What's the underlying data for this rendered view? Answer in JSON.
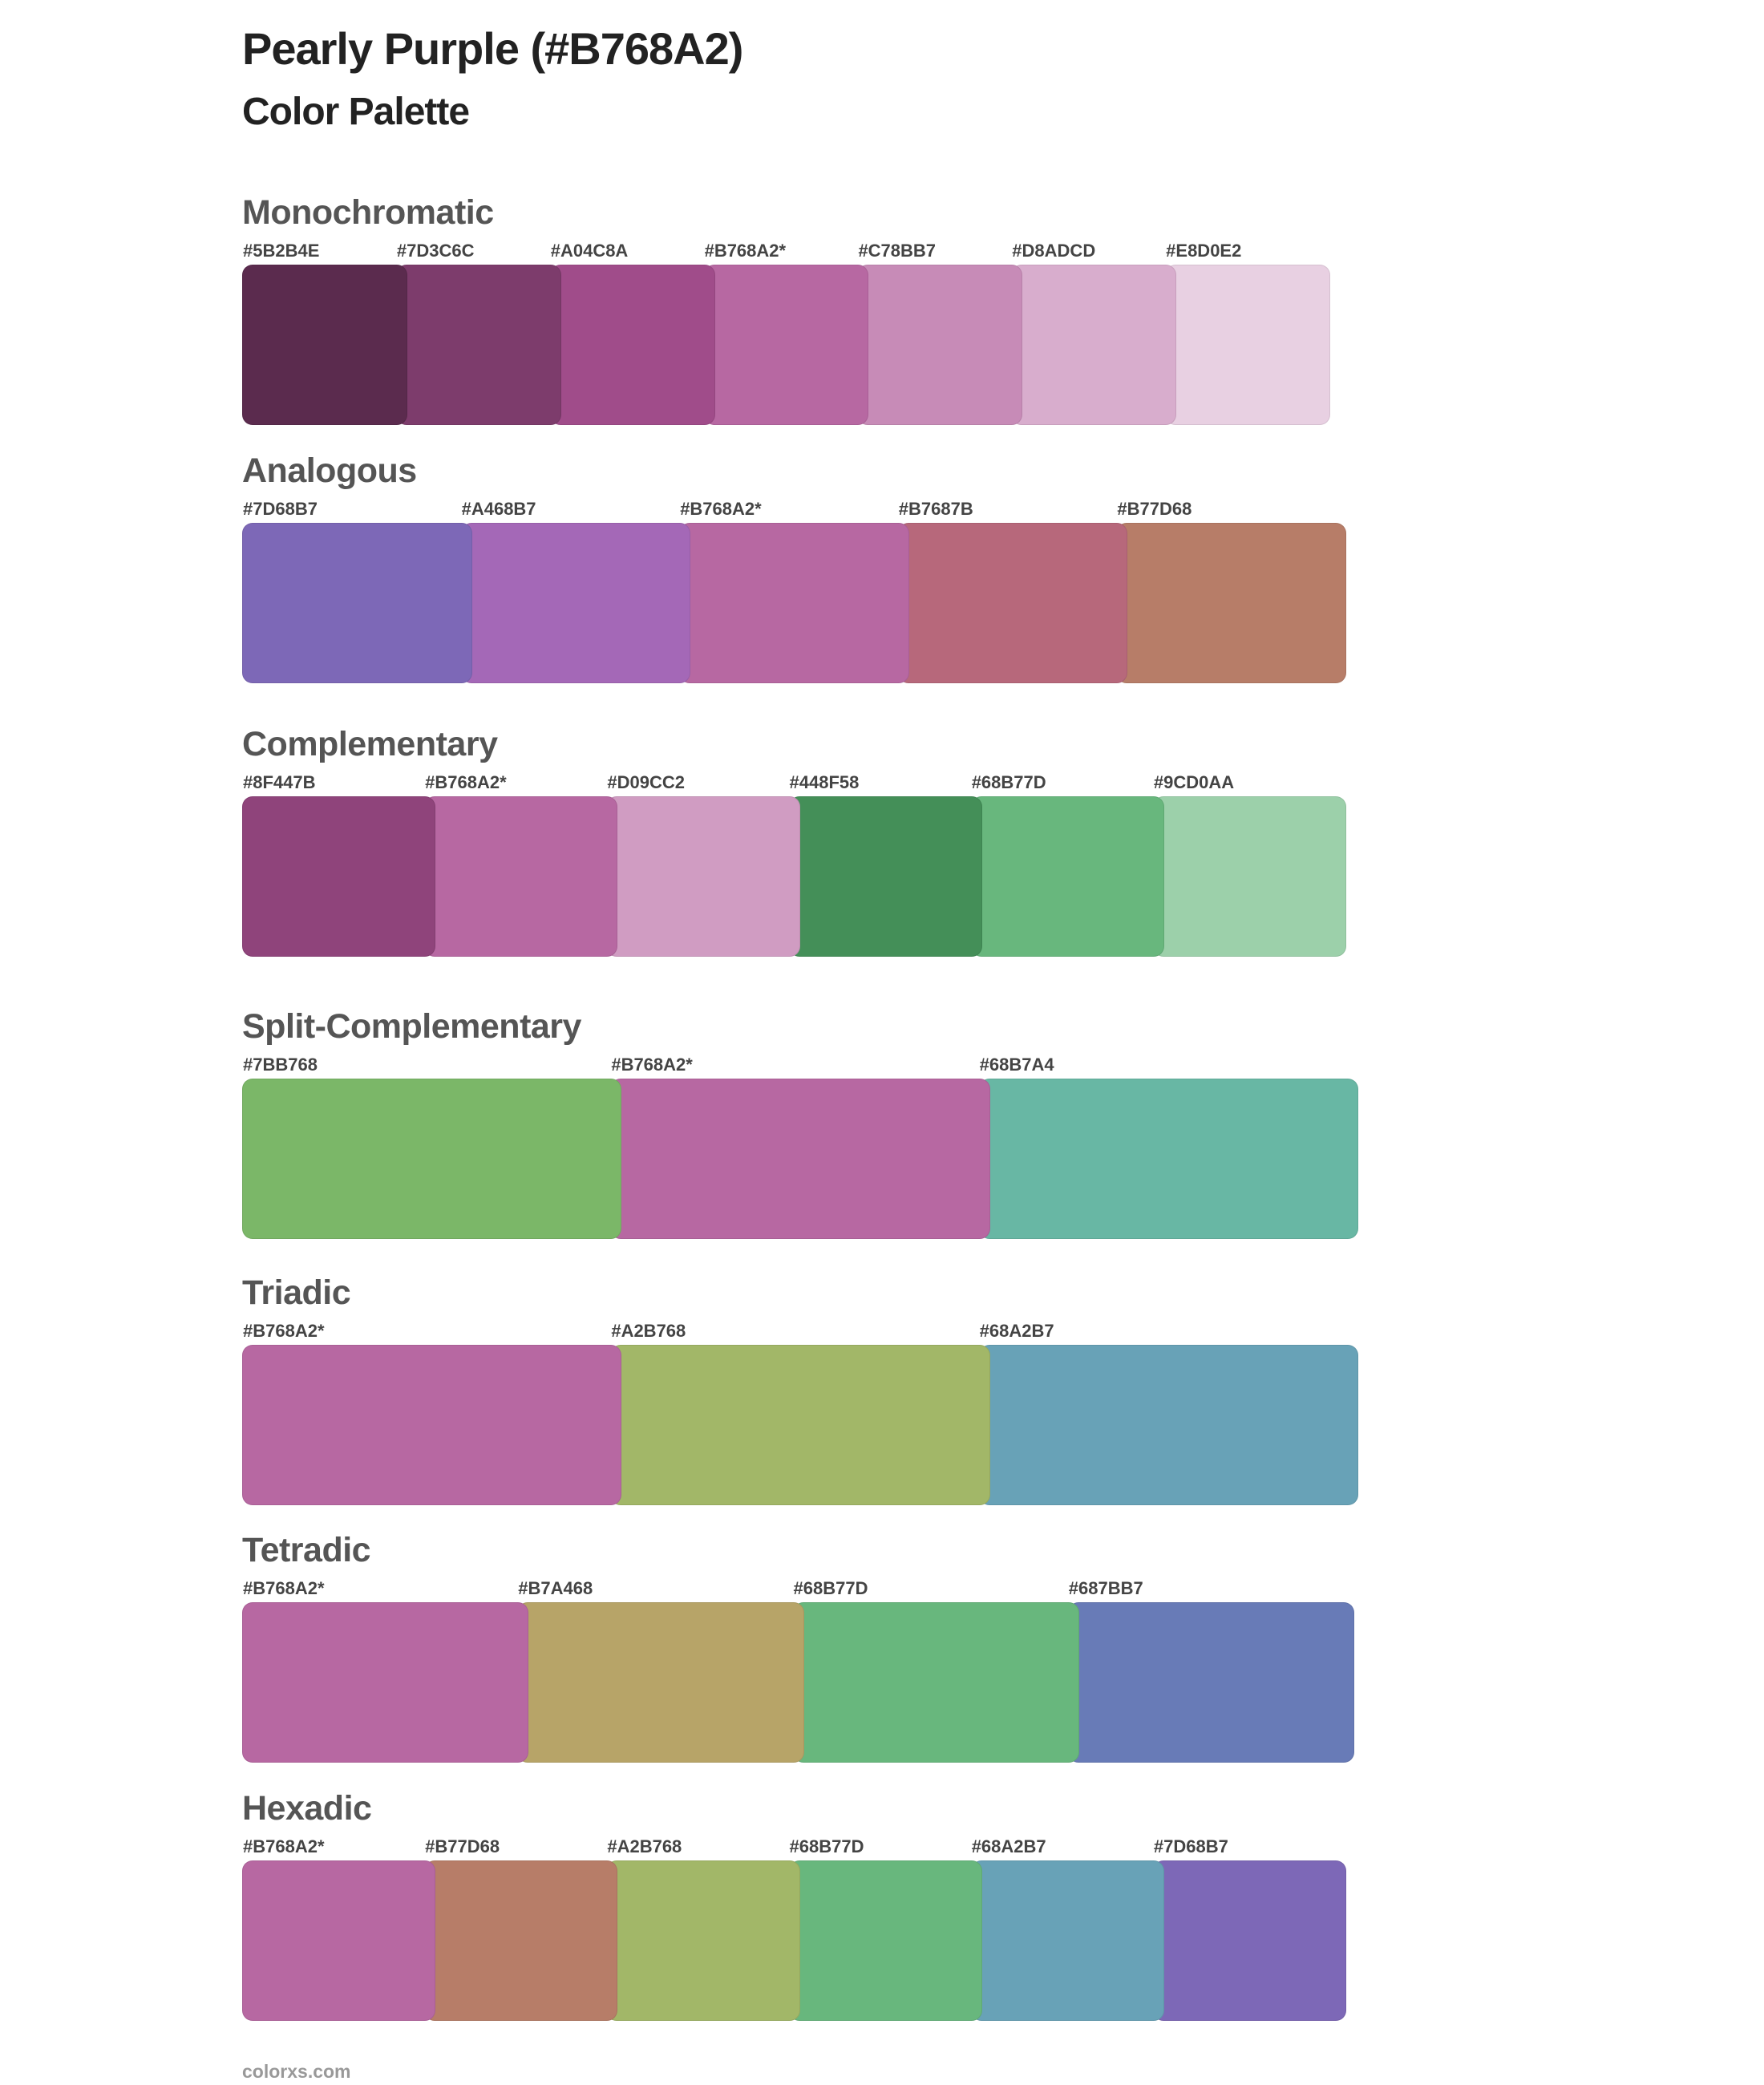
{
  "title": "Pearly Purple (#B768A2)",
  "subtitle": "Color Palette",
  "sections": [
    {
      "name": "Monochromatic",
      "swatches": [
        {
          "label": "#5B2B4E",
          "color": "#5B2B4E"
        },
        {
          "label": "#7D3C6C",
          "color": "#7D3C6C"
        },
        {
          "label": "#A04C8A",
          "color": "#A04C8A"
        },
        {
          "label": "#B768A2*",
          "color": "#B768A2"
        },
        {
          "label": "#C78BB7",
          "color": "#C78BB7"
        },
        {
          "label": "#D8ADCD",
          "color": "#D8ADCD"
        },
        {
          "label": "#E8D0E2",
          "color": "#E8D0E2"
        }
      ]
    },
    {
      "name": "Analogous",
      "swatches": [
        {
          "label": "#7D68B7",
          "color": "#7D68B7"
        },
        {
          "label": "#A468B7",
          "color": "#A468B7"
        },
        {
          "label": "#B768A2*",
          "color": "#B768A2"
        },
        {
          "label": "#B7687B",
          "color": "#B7687B"
        },
        {
          "label": "#B77D68",
          "color": "#B77D68"
        }
      ]
    },
    {
      "name": "Complementary",
      "swatches": [
        {
          "label": "#8F447B",
          "color": "#8F447B"
        },
        {
          "label": "#B768A2*",
          "color": "#B768A2"
        },
        {
          "label": "#D09CC2",
          "color": "#D09CC2"
        },
        {
          "label": "#448F58",
          "color": "#448F58"
        },
        {
          "label": "#68B77D",
          "color": "#68B77D"
        },
        {
          "label": "#9CD0AA",
          "color": "#9CD0AA"
        }
      ]
    },
    {
      "name": "Split-Complementary",
      "swatches": [
        {
          "label": "#7BB768",
          "color": "#7BB768"
        },
        {
          "label": "#B768A2*",
          "color": "#B768A2"
        },
        {
          "label": "#68B7A4",
          "color": "#68B7A4"
        }
      ]
    },
    {
      "name": "Triadic",
      "swatches": [
        {
          "label": "#B768A2*",
          "color": "#B768A2"
        },
        {
          "label": "#A2B768",
          "color": "#A2B768"
        },
        {
          "label": "#68A2B7",
          "color": "#68A2B7"
        }
      ]
    },
    {
      "name": "Tetradic",
      "swatches": [
        {
          "label": "#B768A2*",
          "color": "#B768A2"
        },
        {
          "label": "#B7A468",
          "color": "#B7A468"
        },
        {
          "label": "#68B77D",
          "color": "#68B77D"
        },
        {
          "label": "#687BB7",
          "color": "#687BB7"
        }
      ]
    },
    {
      "name": "Hexadic",
      "swatches": [
        {
          "label": "#B768A2*",
          "color": "#B768A2"
        },
        {
          "label": "#B77D68",
          "color": "#B77D68"
        },
        {
          "label": "#A2B768",
          "color": "#A2B768"
        },
        {
          "label": "#68B77D",
          "color": "#68B77D"
        },
        {
          "label": "#68A2B7",
          "color": "#68A2B7"
        },
        {
          "label": "#7D68B7",
          "color": "#7D68B7"
        }
      ]
    }
  ],
  "footer": "colorxs.com"
}
